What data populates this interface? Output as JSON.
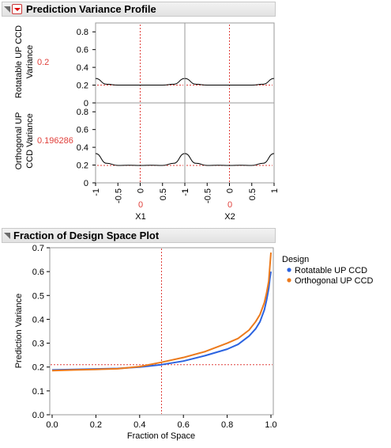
{
  "profile": {
    "title": "Prediction Variance Profile",
    "rows": [
      {
        "label_lines": [
          "Rotatable UP CCD",
          "Variance"
        ],
        "value": "0.2"
      },
      {
        "label_lines": [
          "Orthogonal UP",
          "CCD Variance"
        ],
        "value": "0.196286"
      }
    ],
    "factors": [
      {
        "name": "X1",
        "value": "0"
      },
      {
        "name": "X2",
        "value": "0"
      }
    ],
    "y_ticks": [
      "0",
      "0.2",
      "0.4",
      "0.6",
      "0.8"
    ],
    "x_ticks": [
      "-1",
      "-0.5",
      "0",
      "0.5",
      "1"
    ],
    "ylim": [
      0,
      0.9
    ],
    "xlim": [
      -1,
      1
    ],
    "accent_color": "#e0403b"
  },
  "fds": {
    "title": "Fraction of Design Space Plot",
    "legend_title": "Design",
    "legend": [
      {
        "name": "Rotatable UP CCD",
        "color": "#2b63e0"
      },
      {
        "name": "Orthogonal UP CCD",
        "color": "#ec7a1c"
      }
    ]
  },
  "chart_data": [
    {
      "type": "line",
      "title": "Prediction Variance Profile",
      "ylabel": "Rotatable UP CCD Variance",
      "xlabel": "X1",
      "x": [
        -1,
        -0.75,
        -0.5,
        -0.25,
        0,
        0.25,
        0.5,
        0.75,
        1
      ],
      "values": [
        0.275,
        0.21,
        0.2,
        0.2,
        0.2,
        0.2,
        0.2,
        0.21,
        0.275
      ],
      "ylim": [
        0,
        0.9
      ],
      "xlim": [
        -1,
        1
      ]
    },
    {
      "type": "line",
      "title": "Prediction Variance Profile",
      "ylabel": "Rotatable UP CCD Variance",
      "xlabel": "X2",
      "x": [
        -1,
        -0.75,
        -0.5,
        -0.25,
        0,
        0.25,
        0.5,
        0.75,
        1
      ],
      "values": [
        0.275,
        0.21,
        0.2,
        0.2,
        0.2,
        0.2,
        0.2,
        0.21,
        0.275
      ],
      "ylim": [
        0,
        0.9
      ],
      "xlim": [
        -1,
        1
      ]
    },
    {
      "type": "line",
      "title": "Prediction Variance Profile",
      "ylabel": "Orthogonal UP CCD Variance",
      "xlabel": "X1",
      "x": [
        -1,
        -0.75,
        -0.5,
        -0.25,
        0,
        0.25,
        0.5,
        0.75,
        1
      ],
      "values": [
        0.33,
        0.22,
        0.196,
        0.198,
        0.196,
        0.198,
        0.196,
        0.22,
        0.33
      ],
      "ylim": [
        0,
        0.9
      ],
      "xlim": [
        -1,
        1
      ]
    },
    {
      "type": "line",
      "title": "Prediction Variance Profile",
      "ylabel": "Orthogonal UP CCD Variance",
      "xlabel": "X2",
      "x": [
        -1,
        -0.75,
        -0.5,
        -0.25,
        0,
        0.25,
        0.5,
        0.75,
        1
      ],
      "values": [
        0.33,
        0.22,
        0.196,
        0.198,
        0.196,
        0.198,
        0.196,
        0.22,
        0.33
      ],
      "ylim": [
        0,
        0.9
      ],
      "xlim": [
        -1,
        1
      ]
    },
    {
      "type": "line",
      "title": "Fraction of Design Space Plot",
      "xlabel": "Fraction of Space",
      "ylabel": "Prediction Variance",
      "xlim": [
        0,
        1
      ],
      "ylim": [
        0,
        0.7
      ],
      "x_ticks": [
        "0.0",
        "0.2",
        "0.4",
        "0.6",
        "0.8",
        "1.0"
      ],
      "y_ticks": [
        "0.0",
        "0.1",
        "0.2",
        "0.3",
        "0.4",
        "0.5",
        "0.6",
        "0.7"
      ],
      "reference_x": 0.5,
      "reference_y": 0.21,
      "series": [
        {
          "name": "Rotatable UP CCD",
          "x": [
            0,
            0.1,
            0.2,
            0.3,
            0.4,
            0.5,
            0.6,
            0.7,
            0.8,
            0.85,
            0.9,
            0.93,
            0.95,
            0.97,
            0.98,
            0.99,
            0.995,
            1.0
          ],
          "values": [
            0.188,
            0.19,
            0.192,
            0.194,
            0.2,
            0.21,
            0.225,
            0.248,
            0.275,
            0.295,
            0.33,
            0.36,
            0.39,
            0.44,
            0.48,
            0.53,
            0.57,
            0.6
          ]
        },
        {
          "name": "Orthogonal UP CCD",
          "x": [
            0,
            0.1,
            0.2,
            0.3,
            0.4,
            0.5,
            0.6,
            0.7,
            0.8,
            0.85,
            0.9,
            0.93,
            0.95,
            0.97,
            0.98,
            0.99,
            0.995,
            1.0
          ],
          "values": [
            0.185,
            0.188,
            0.19,
            0.193,
            0.202,
            0.22,
            0.24,
            0.265,
            0.3,
            0.32,
            0.355,
            0.39,
            0.42,
            0.47,
            0.51,
            0.56,
            0.62,
            0.68
          ]
        }
      ]
    }
  ]
}
